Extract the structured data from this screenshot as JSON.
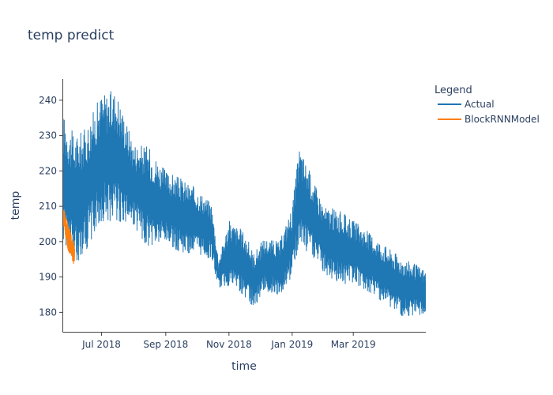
{
  "chart_data": {
    "type": "line",
    "title": "temp predict",
    "xlabel": "time",
    "ylabel": "temp",
    "x_range": [
      "2018-05-25",
      "2019-05-10"
    ],
    "ylim": [
      174.5,
      246
    ],
    "x_ticks": [
      {
        "date": "2018-07-01",
        "label": "Jul 2018"
      },
      {
        "date": "2018-09-01",
        "label": "Sep 2018"
      },
      {
        "date": "2018-11-01",
        "label": "Nov 2018"
      },
      {
        "date": "2019-01-01",
        "label": "Jan 2019"
      },
      {
        "date": "2019-03-01",
        "label": "Mar 2019"
      }
    ],
    "y_ticks": [
      180,
      190,
      200,
      210,
      220,
      230,
      240
    ],
    "grid": false,
    "legend": {
      "title": "Legend",
      "placement": "top-right"
    },
    "series": [
      {
        "name": "Actual",
        "color": "#1f77b4",
        "style": "dense-oscillating",
        "envelope": [
          {
            "date": "2018-05-25",
            "low": 200,
            "high": 236
          },
          {
            "date": "2018-06-05",
            "low": 193,
            "high": 230
          },
          {
            "date": "2018-06-15",
            "low": 197,
            "high": 232
          },
          {
            "date": "2018-07-01",
            "low": 205,
            "high": 242
          },
          {
            "date": "2018-07-15",
            "low": 206,
            "high": 243
          },
          {
            "date": "2018-08-01",
            "low": 204,
            "high": 228
          },
          {
            "date": "2018-08-15",
            "low": 198,
            "high": 227
          },
          {
            "date": "2018-09-01",
            "low": 199,
            "high": 220
          },
          {
            "date": "2018-09-15",
            "low": 197,
            "high": 218
          },
          {
            "date": "2018-10-01",
            "low": 196,
            "high": 215
          },
          {
            "date": "2018-10-15",
            "low": 195,
            "high": 211
          },
          {
            "date": "2018-10-22",
            "low": 187,
            "high": 195
          },
          {
            "date": "2018-11-01",
            "low": 187,
            "high": 206
          },
          {
            "date": "2018-11-15",
            "low": 185,
            "high": 203
          },
          {
            "date": "2018-11-25",
            "low": 181,
            "high": 197
          },
          {
            "date": "2018-12-05",
            "low": 186,
            "high": 201
          },
          {
            "date": "2018-12-20",
            "low": 185,
            "high": 200
          },
          {
            "date": "2019-01-01",
            "low": 190,
            "high": 210
          },
          {
            "date": "2019-01-08",
            "low": 198,
            "high": 227
          },
          {
            "date": "2019-01-15",
            "low": 197,
            "high": 222
          },
          {
            "date": "2019-02-01",
            "low": 191,
            "high": 210
          },
          {
            "date": "2019-02-15",
            "low": 188,
            "high": 209
          },
          {
            "date": "2019-03-01",
            "low": 188,
            "high": 206
          },
          {
            "date": "2019-03-15",
            "low": 186,
            "high": 203
          },
          {
            "date": "2019-04-01",
            "low": 182,
            "high": 199
          },
          {
            "date": "2019-04-15",
            "low": 179,
            "high": 196
          },
          {
            "date": "2019-05-10",
            "low": 179,
            "high": 192
          }
        ]
      },
      {
        "name": "BlockRNNModel",
        "color": "#ff7f0e",
        "style": "dense-oscillating",
        "envelope": [
          {
            "date": "2018-05-25",
            "low": 205,
            "high": 210
          },
          {
            "date": "2018-05-29",
            "low": 198,
            "high": 206
          },
          {
            "date": "2018-06-02",
            "low": 195,
            "high": 202
          },
          {
            "date": "2018-06-05",
            "low": 193,
            "high": 200
          }
        ]
      }
    ]
  }
}
